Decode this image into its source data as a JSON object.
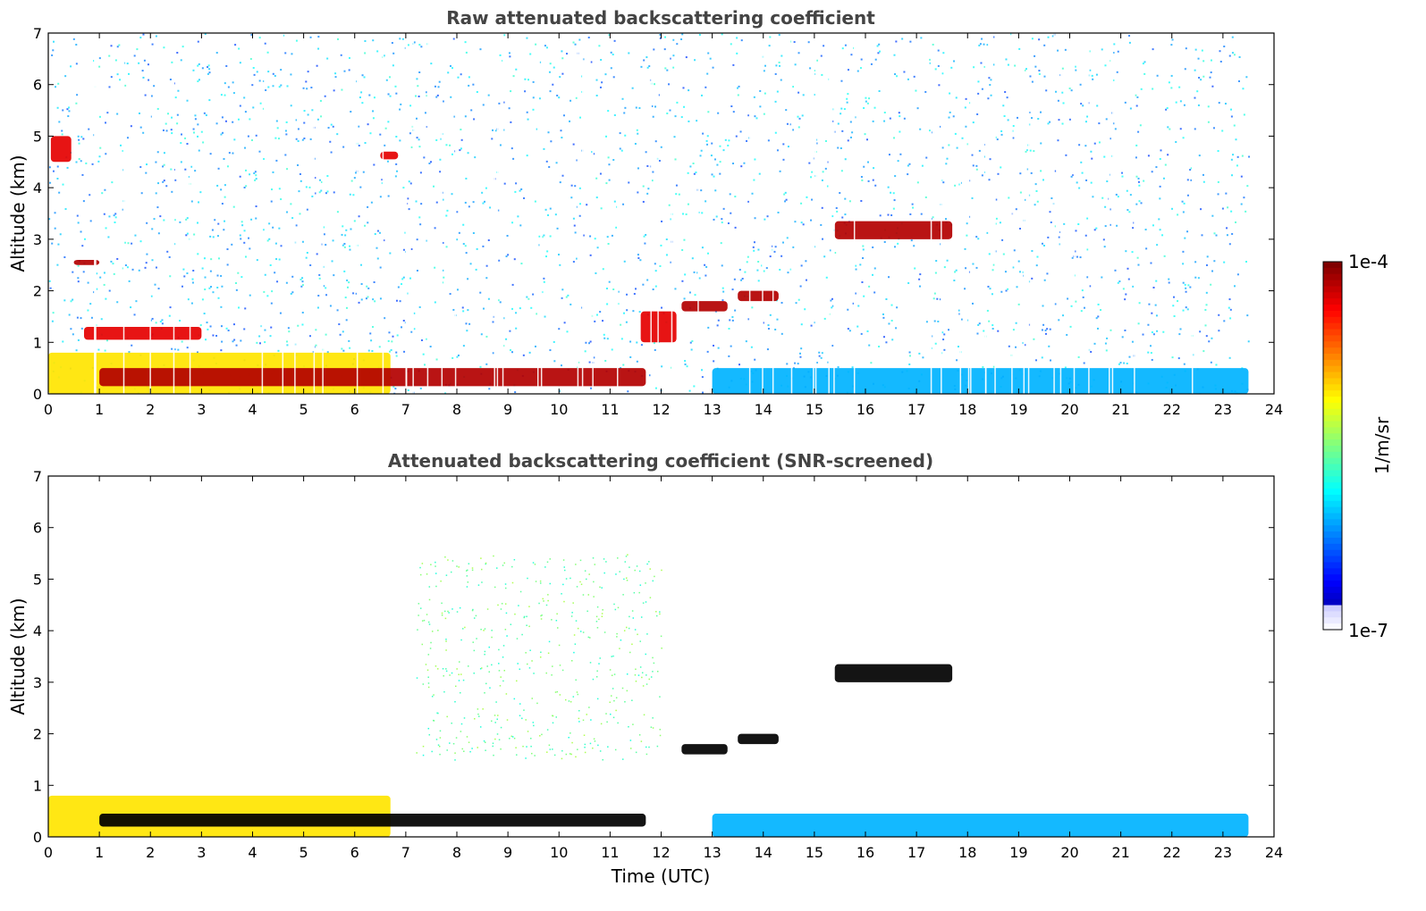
{
  "chart_data": [
    {
      "type": "heatmap",
      "title": "Raw attenuated backscattering coefficient",
      "xlabel": "",
      "ylabel": "Altitude (km)",
      "xlim": [
        0,
        24
      ],
      "ylim": [
        0,
        7
      ],
      "xticks": [
        "0",
        "1",
        "2",
        "3",
        "4",
        "5",
        "6",
        "7",
        "8",
        "9",
        "10",
        "11",
        "12",
        "13",
        "14",
        "15",
        "16",
        "17",
        "18",
        "19",
        "20",
        "21",
        "22",
        "23",
        "24"
      ],
      "yticks": [
        "0",
        "1",
        "2",
        "3",
        "4",
        "5",
        "6",
        "7"
      ],
      "data_end_time": 23.5,
      "background_noise": "blue speckle across all altitudes",
      "features": [
        {
          "name": "aerosol_layer",
          "t0": 0,
          "t1": 6.7,
          "h0": 0,
          "h1": 0.8,
          "level": 0.65
        },
        {
          "name": "dense_layer_top",
          "t0": 1.0,
          "t1": 11.7,
          "h0": 0.15,
          "h1": 0.5,
          "level": 0.95
        },
        {
          "name": "cloud_5km",
          "t0": 0.05,
          "t1": 0.45,
          "h0": 4.5,
          "h1": 5.0,
          "level": 0.9
        },
        {
          "name": "cloud_4_6km",
          "t0": 6.5,
          "t1": 6.85,
          "h0": 4.55,
          "h1": 4.7,
          "level": 0.9
        },
        {
          "name": "cloud_2_5km",
          "t0": 0.5,
          "t1": 1.0,
          "h0": 2.5,
          "h1": 2.6,
          "level": 0.95
        },
        {
          "name": "cloud_1_1km",
          "t0": 0.7,
          "t1": 3.0,
          "h0": 1.05,
          "h1": 1.3,
          "level": 0.9
        },
        {
          "name": "cloud_1_5km",
          "t0": 11.6,
          "t1": 12.3,
          "h0": 1.0,
          "h1": 1.6,
          "level": 0.9
        },
        {
          "name": "cloud_1_8km",
          "t0": 12.4,
          "t1": 13.3,
          "h0": 1.6,
          "h1": 1.8,
          "level": 0.95
        },
        {
          "name": "cloud_2km",
          "t0": 13.5,
          "t1": 14.3,
          "h0": 1.8,
          "h1": 2.0,
          "level": 0.95
        },
        {
          "name": "cloud_3km",
          "t0": 15.4,
          "t1": 17.7,
          "h0": 3.0,
          "h1": 3.35,
          "level": 0.95
        },
        {
          "name": "boundary_layer_night",
          "t0": 13.0,
          "t1": 23.5,
          "h0": 0,
          "h1": 0.5,
          "level": 0.3
        }
      ]
    },
    {
      "type": "heatmap",
      "title": "Attenuated backscattering coefficient (SNR-screened)",
      "xlabel": "Time (UTC)",
      "ylabel": "Altitude (km)",
      "xlim": [
        0,
        24
      ],
      "ylim": [
        0,
        7
      ],
      "xticks": [
        "0",
        "1",
        "2",
        "3",
        "4",
        "5",
        "6",
        "7",
        "8",
        "9",
        "10",
        "11",
        "12",
        "13",
        "14",
        "15",
        "16",
        "17",
        "18",
        "19",
        "20",
        "21",
        "22",
        "23",
        "24"
      ],
      "yticks": [
        "0",
        "1",
        "2",
        "3",
        "4",
        "5",
        "6",
        "7"
      ],
      "data_end_time": 23.5,
      "screened_saturated_color": "#000000",
      "features": [
        {
          "name": "aerosol_layer",
          "t0": 0,
          "t1": 6.7,
          "h0": 0,
          "h1": 0.8,
          "level": 0.65
        },
        {
          "name": "dense_layer_top",
          "t0": 1.0,
          "t1": 11.7,
          "h0": 0.2,
          "h1": 0.45,
          "level": 1.0
        },
        {
          "name": "cloud_3km",
          "t0": 15.4,
          "t1": 17.7,
          "h0": 3.0,
          "h1": 3.35,
          "level": 1.0
        },
        {
          "name": "cloud_2km",
          "t0": 13.5,
          "t1": 14.3,
          "h0": 1.8,
          "h1": 2.0,
          "level": 1.0
        },
        {
          "name": "cloud_1_8km",
          "t0": 12.4,
          "t1": 13.3,
          "h0": 1.6,
          "h1": 1.8,
          "level": 1.0
        },
        {
          "name": "boundary_layer_night",
          "t0": 13.0,
          "t1": 23.5,
          "h0": 0,
          "h1": 0.45,
          "level": 0.3
        },
        {
          "name": "sparse_speckle_midday",
          "t0": 7.2,
          "t1": 12.0,
          "h0": 1.5,
          "h1": 5.5,
          "level": 0.4
        }
      ]
    }
  ],
  "colorbar": {
    "label": "1/m/sr",
    "max_label": "1e-4",
    "min_label": "1e-7",
    "scale": "log",
    "colormap": "jet"
  }
}
